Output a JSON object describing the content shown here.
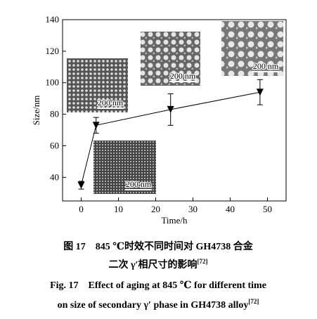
{
  "chart_data": {
    "type": "line",
    "xlabel": "Time/h",
    "ylabel": "Size/nm",
    "x": [
      0,
      4,
      24,
      48
    ],
    "values": [
      35,
      73,
      83,
      94
    ],
    "errors": [
      2.5,
      5,
      10,
      8
    ],
    "color": "#000000",
    "xlim": [
      -5,
      55
    ],
    "xticks": [
      0,
      10,
      20,
      30,
      40,
      50
    ],
    "ylim": [
      25,
      140
    ],
    "yticks": [
      40,
      60,
      80,
      100,
      120,
      140
    ],
    "insets": [
      {
        "label": "200 nm"
      },
      {
        "label": "200 nm"
      },
      {
        "label": "200 nm"
      },
      {
        "label": "200 nm"
      }
    ]
  },
  "caption": {
    "cn_line1": "图 17　845 ℃时效不同时间对 GH4738 合金",
    "cn_line2": "二次 γ′相尺寸的影响",
    "cn_ref": "[72]",
    "en_line1": "Fig. 17　Effect of aging at 845 ℃ for different time",
    "en_line2": "on size of secondary γ′ phase in GH4738 alloy",
    "en_ref": "[72]"
  }
}
